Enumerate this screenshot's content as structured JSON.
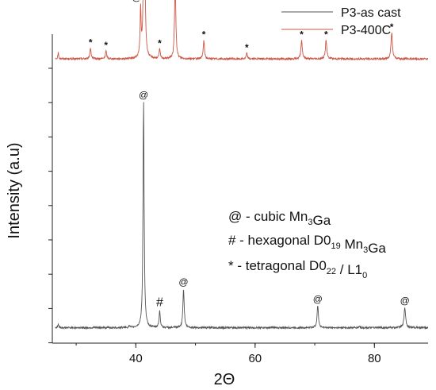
{
  "chart_data": {
    "type": "line",
    "xlabel": "2Θ",
    "ylabel": "Intensity (a.u)",
    "xlim": [
      26,
      89
    ],
    "x_ticks": [
      40,
      60,
      80
    ],
    "y_ticks_labeled": false,
    "grid": false,
    "legend_position": "top-right",
    "series": [
      {
        "name": "P3-as cast",
        "color": "#555555",
        "baseline": 0.05,
        "peaks": [
          {
            "x": 27.0,
            "h": 0.012,
            "w": 0.08
          },
          {
            "x": 38.9,
            "h": 0.006,
            "w": 0.08
          },
          {
            "x": 41.3,
            "h": 0.73,
            "w": 0.11
          },
          {
            "x": 44.0,
            "h": 0.055,
            "w": 0.12
          },
          {
            "x": 48.0,
            "h": 0.125,
            "w": 0.13
          },
          {
            "x": 70.5,
            "h": 0.07,
            "w": 0.14
          },
          {
            "x": 77.5,
            "h": 0.005,
            "w": 0.1
          },
          {
            "x": 85.1,
            "h": 0.065,
            "w": 0.16
          }
        ]
      },
      {
        "name": "P3-400C",
        "color": "#cc5544",
        "baseline": 0.92,
        "peaks": [
          {
            "x": 27.0,
            "h": 0.02,
            "w": 0.08
          },
          {
            "x": 32.4,
            "h": 0.035,
            "w": 0.12
          },
          {
            "x": 35.0,
            "h": 0.025,
            "w": 0.12
          },
          {
            "x": 40.8,
            "h": 0.15,
            "w": 0.1
          },
          {
            "x": 41.4,
            "h": 0.98,
            "w": 0.1
          },
          {
            "x": 44.0,
            "h": 0.03,
            "w": 0.12
          },
          {
            "x": 46.6,
            "h": 0.26,
            "w": 0.12
          },
          {
            "x": 51.4,
            "h": 0.06,
            "w": 0.12
          },
          {
            "x": 58.6,
            "h": 0.018,
            "w": 0.12
          },
          {
            "x": 67.8,
            "h": 0.06,
            "w": 0.14
          },
          {
            "x": 71.9,
            "h": 0.06,
            "w": 0.14
          },
          {
            "x": 82.9,
            "h": 0.085,
            "w": 0.14
          }
        ]
      }
    ],
    "peak_markers": [
      {
        "x": 41.3,
        "series": "P3-as cast",
        "symbol": "@"
      },
      {
        "x": 44.0,
        "series": "P3-as cast",
        "symbol": "#"
      },
      {
        "x": 48.0,
        "series": "P3-as cast",
        "symbol": "@"
      },
      {
        "x": 70.5,
        "series": "P3-as cast",
        "symbol": "@"
      },
      {
        "x": 85.1,
        "series": "P3-as cast",
        "symbol": "@"
      },
      {
        "x": 32.4,
        "series": "P3-400C",
        "symbol": "*"
      },
      {
        "x": 35.0,
        "series": "P3-400C",
        "symbol": "*"
      },
      {
        "x": 40.8,
        "series": "P3-400C",
        "symbol": "@"
      },
      {
        "x": 41.4,
        "series": "P3-400C",
        "symbol": "*"
      },
      {
        "x": 44.0,
        "series": "P3-400C",
        "symbol": "*"
      },
      {
        "x": 46.6,
        "series": "P3-400C",
        "symbol": "*"
      },
      {
        "x": 51.4,
        "series": "P3-400C",
        "symbol": "*"
      },
      {
        "x": 58.6,
        "series": "P3-400C",
        "symbol": "*"
      },
      {
        "x": 67.8,
        "series": "P3-400C",
        "symbol": "*"
      },
      {
        "x": 71.9,
        "series": "P3-400C",
        "symbol": "*"
      },
      {
        "x": 82.9,
        "series": "P3-400C",
        "symbol": "*"
      }
    ],
    "annotations": [
      {
        "id": "cubic",
        "parts": [
          [
            "@ - cubic Mn",
            ""
          ],
          [
            "3",
            "sub"
          ],
          [
            "Ga",
            ""
          ]
        ]
      },
      {
        "id": "hexagonal",
        "parts": [
          [
            "# - hexagonal D0",
            ""
          ],
          [
            "19",
            "sub"
          ],
          [
            " Mn",
            ""
          ],
          [
            "3",
            "sub"
          ],
          [
            "Ga",
            ""
          ]
        ]
      },
      {
        "id": "tetragonal",
        "parts": [
          [
            "* - tetragonal D0",
            ""
          ],
          [
            "22",
            "sub"
          ],
          [
            " / L1",
            ""
          ],
          [
            "0",
            "sub"
          ]
        ]
      }
    ]
  }
}
